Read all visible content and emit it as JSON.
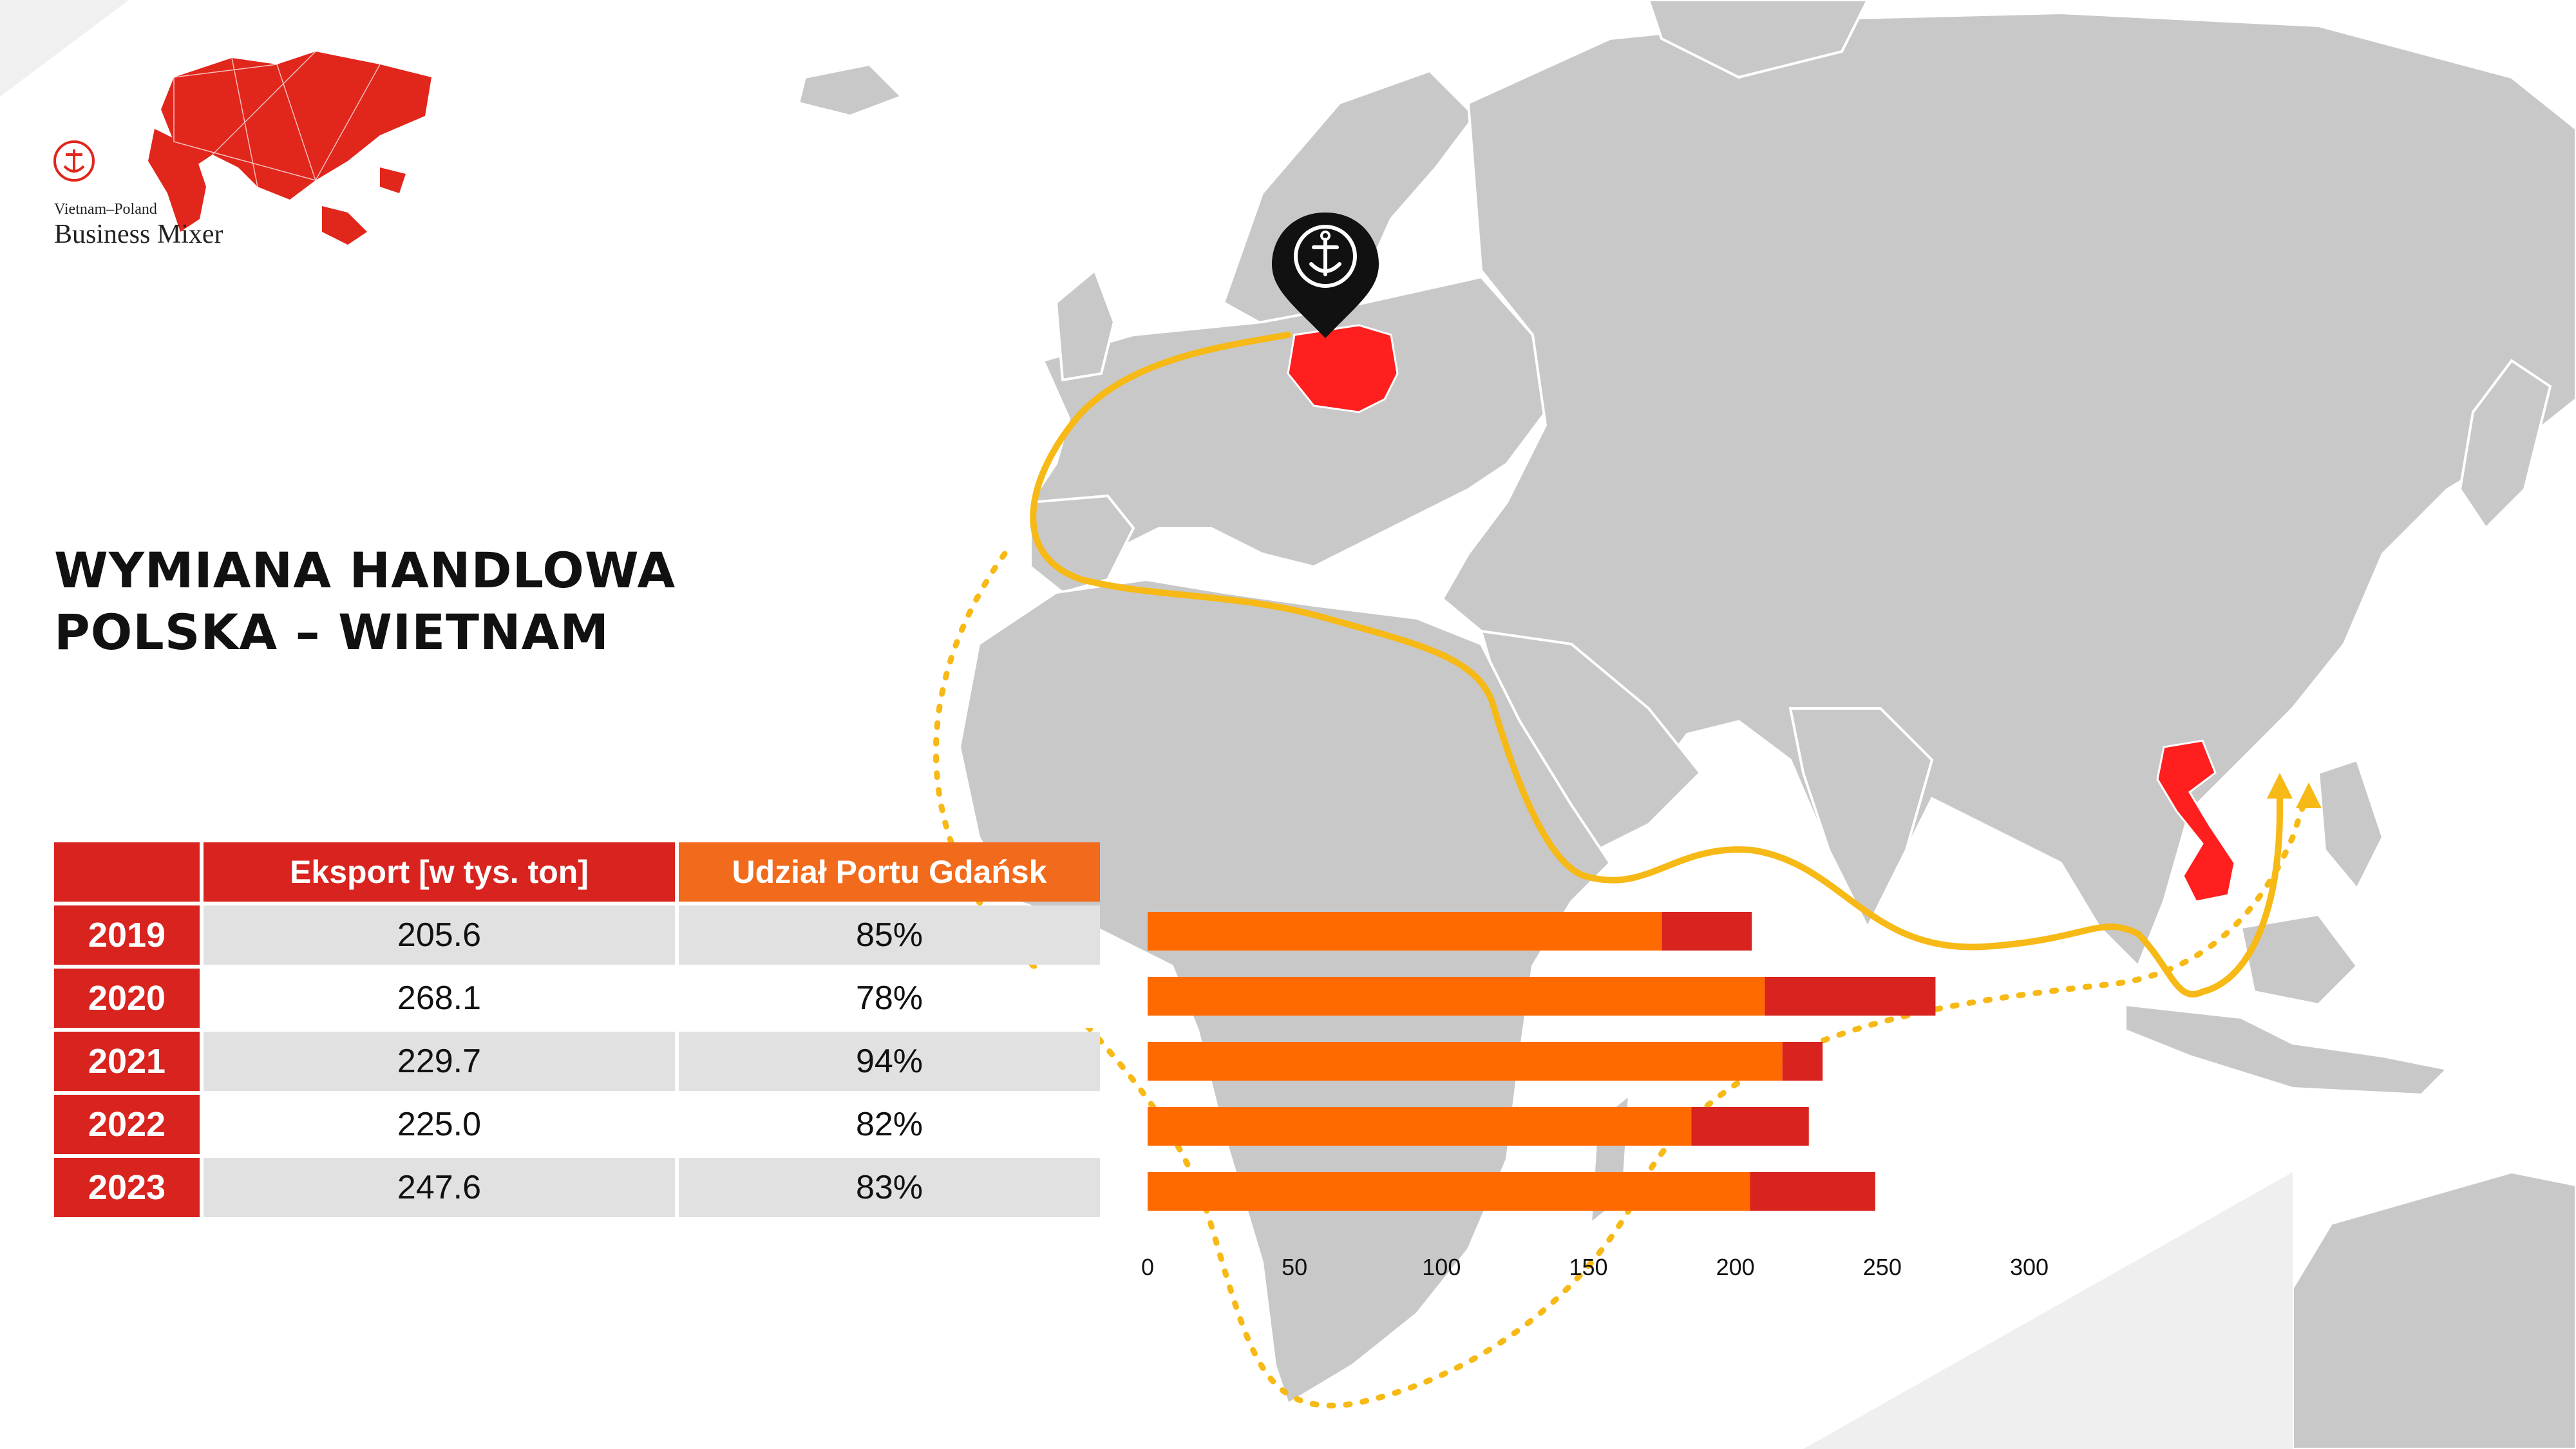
{
  "logo": {
    "line1": "Vietnam–Poland",
    "line2": "Business Mixer"
  },
  "title": {
    "line1": "WYMIANA HANDLOWA",
    "line2": "POLSKA – WIETNAM"
  },
  "table": {
    "headers": [
      "",
      "Eksport [w tys. ton]",
      "Udział Portu Gdańsk"
    ],
    "rows": [
      {
        "year": "2019",
        "export": "205.6",
        "share": "85%"
      },
      {
        "year": "2020",
        "export": "268.1",
        "share": "78%"
      },
      {
        "year": "2021",
        "export": "229.7",
        "share": "94%"
      },
      {
        "year": "2022",
        "export": "225.0",
        "share": "82%"
      },
      {
        "year": "2023",
        "export": "247.6",
        "share": "83%"
      }
    ]
  },
  "chart_data": {
    "type": "bar",
    "orientation": "horizontal",
    "stacked": true,
    "categories": [
      "2019",
      "2020",
      "2021",
      "2022",
      "2023"
    ],
    "series": [
      {
        "values": [
          175,
          210,
          216,
          185,
          205
        ]
      },
      {
        "values": [
          30.6,
          58.1,
          13.7,
          40.0,
          42.6
        ]
      }
    ],
    "xlim": [
      0,
      300
    ],
    "xticks": [
      "0",
      "50",
      "100",
      "150",
      "200",
      "250",
      "300"
    ],
    "grid": false
  },
  "colors": {
    "brand_red": "#d8231f",
    "gdansk_orange": "#f26a1b",
    "bar_primary": "#ff6a00",
    "bar_secondary": "#d8231f",
    "route": "#f6b915",
    "map_land": "#c8c8c8"
  },
  "icons": [
    "anchor-crest-icon",
    "location-pin-icon"
  ]
}
